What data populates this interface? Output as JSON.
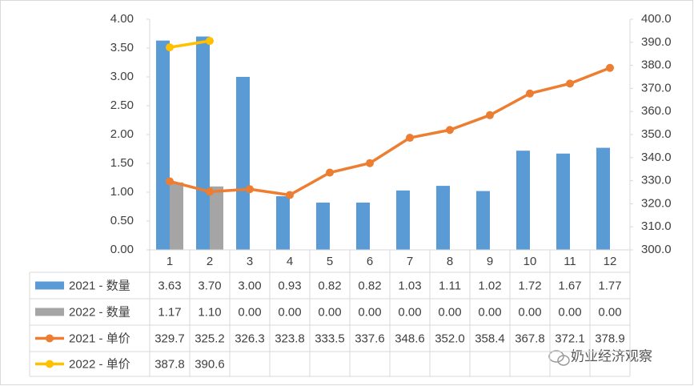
{
  "chart_data": {
    "type": "bar_line_table",
    "categories": [
      "1",
      "2",
      "3",
      "4",
      "5",
      "6",
      "7",
      "8",
      "9",
      "10",
      "11",
      "12"
    ],
    "series": [
      {
        "name": "2021 - 数量",
        "color": "#5b9bd5",
        "kind": "bar",
        "values": [
          3.63,
          3.7,
          3.0,
          0.93,
          0.82,
          0.82,
          1.03,
          1.11,
          1.02,
          1.72,
          1.67,
          1.77
        ],
        "value_labels": [
          "3.63",
          "3.70",
          "3.00",
          "0.93",
          "0.82",
          "0.82",
          "1.03",
          "1.11",
          "1.02",
          "1.72",
          "1.67",
          "1.77"
        ]
      },
      {
        "name": "2022 - 数量",
        "color": "#a5a5a5",
        "kind": "bar",
        "values": [
          1.17,
          1.1,
          0,
          0,
          0,
          0,
          0,
          0,
          0,
          0,
          0,
          0
        ],
        "value_labels": [
          "1.17",
          "1.10",
          "0.00",
          "0.00",
          "0.00",
          "0.00",
          "0.00",
          "0.00",
          "0.00",
          "0.00",
          "0.00",
          "0.00"
        ]
      },
      {
        "name": "2021 - 单价",
        "color": "#ed7d31",
        "kind": "line",
        "axis": "y2",
        "values": [
          329.7,
          325.2,
          326.3,
          323.8,
          333.5,
          337.6,
          348.6,
          352.0,
          358.4,
          367.8,
          372.1,
          378.9
        ],
        "value_labels": [
          "329.7",
          "325.2",
          "326.3",
          "323.8",
          "333.5",
          "337.6",
          "348.6",
          "352.0",
          "358.4",
          "367.8",
          "372.1",
          "378.9"
        ]
      },
      {
        "name": "2022 - 单价",
        "color": "#ffc000",
        "kind": "line",
        "axis": "y2",
        "values": [
          387.8,
          390.6,
          null,
          null,
          null,
          null,
          null,
          null,
          null,
          null,
          null,
          null
        ]
      }
    ],
    "ylim": [
      0,
      4
    ],
    "yticks": [
      {
        "value": 0,
        "label": "0.00"
      },
      {
        "value": 0.5,
        "label": "0.50"
      },
      {
        "value": 1,
        "label": "1.00"
      },
      {
        "value": 1.5,
        "label": "1.50"
      },
      {
        "value": 2,
        "label": "2.00"
      },
      {
        "value": 2.5,
        "label": "2.50"
      },
      {
        "value": 3,
        "label": "3.00"
      },
      {
        "value": 3.5,
        "label": "3.50"
      },
      {
        "value": 4,
        "label": "4.00"
      }
    ],
    "y2lim": [
      300,
      400
    ],
    "y2ticks": [
      {
        "value": 300,
        "label": "300.0"
      },
      {
        "value": 310,
        "label": "310.0"
      },
      {
        "value": 320,
        "label": "320.0"
      },
      {
        "value": 330,
        "label": "330.0"
      },
      {
        "value": 340,
        "label": "340.0"
      },
      {
        "value": 350,
        "label": "350.0"
      },
      {
        "value": 360,
        "label": "360.0"
      },
      {
        "value": 370,
        "label": "370.0"
      },
      {
        "value": 380,
        "label": "380.0"
      },
      {
        "value": 390,
        "label": "390.0"
      },
      {
        "value": 400,
        "label": "400.0"
      }
    ],
    "watermark": "奶业经济观察"
  }
}
